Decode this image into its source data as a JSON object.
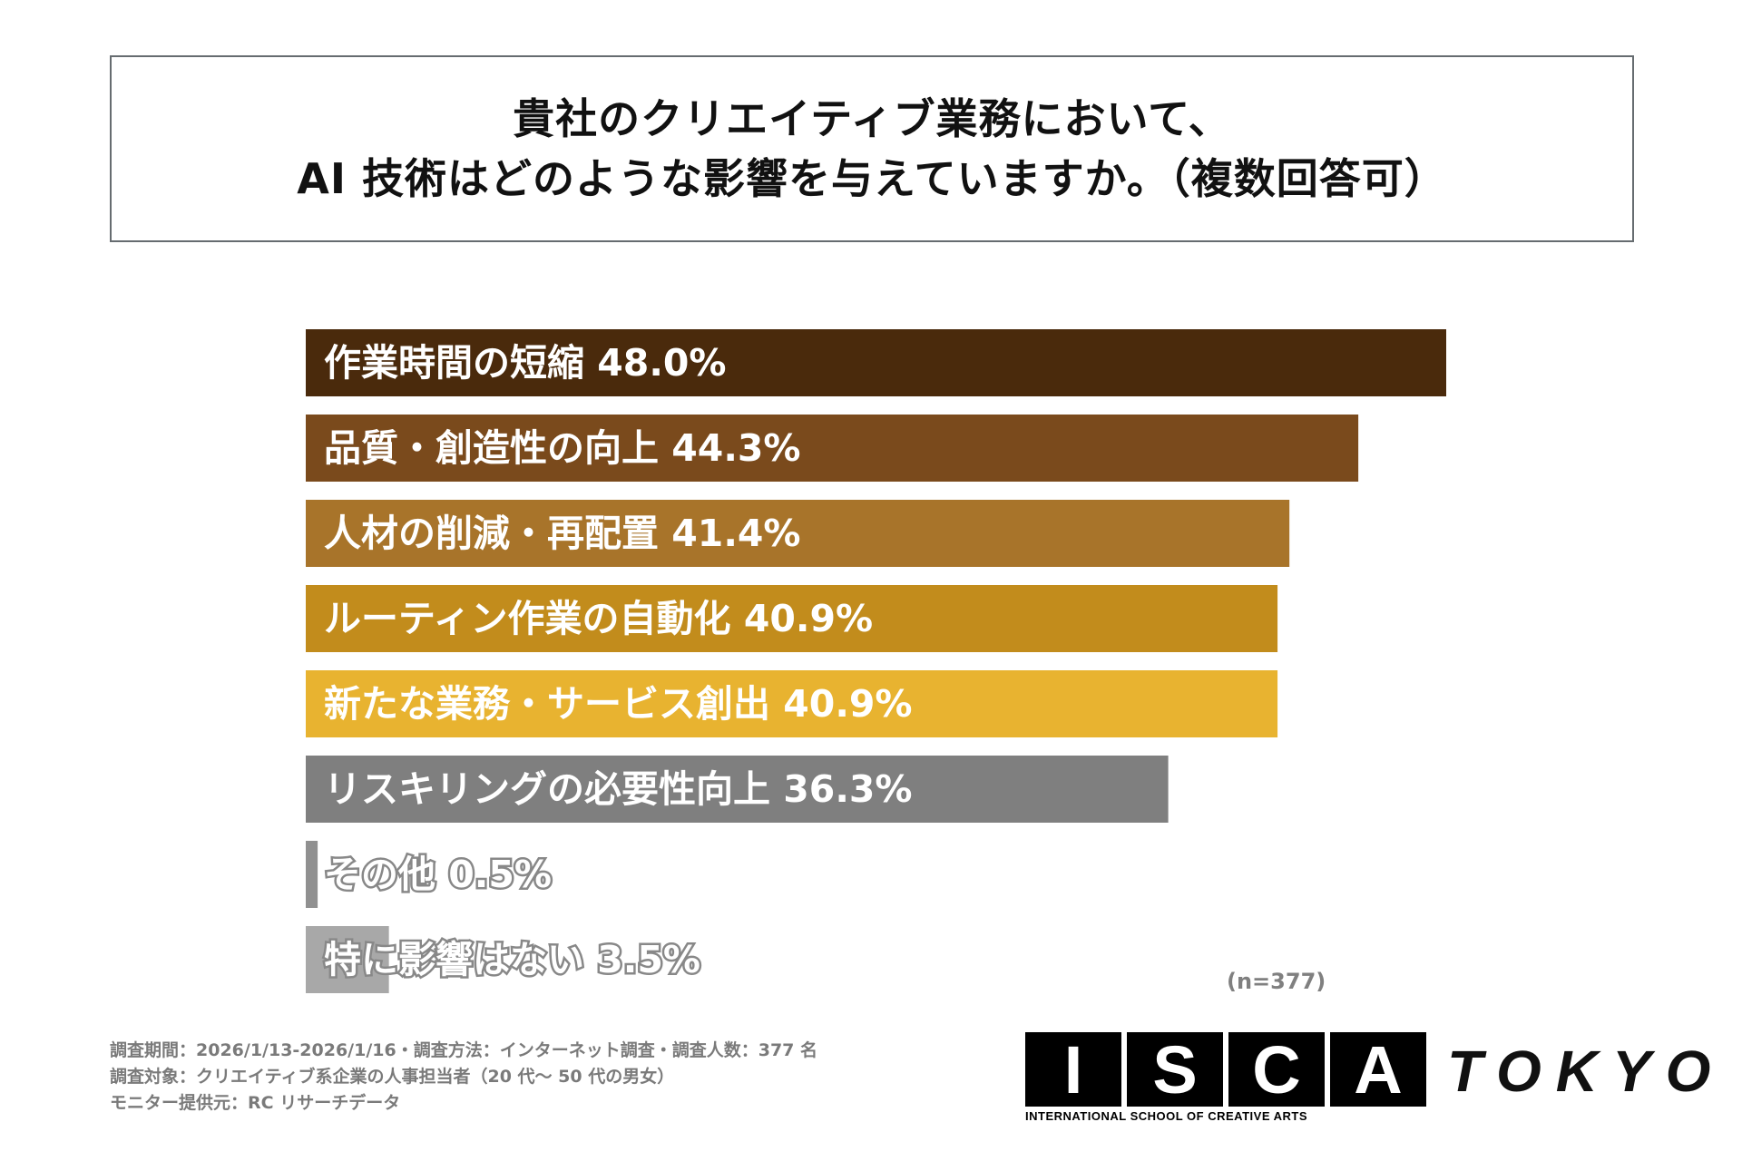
{
  "title": {
    "line1": "貴社のクリエイティブ業務において、",
    "line2": "AI 技術はどのような影響を与えていますか。（複数回答可）"
  },
  "chart_data": {
    "type": "bar",
    "orientation": "horizontal",
    "categories": [
      "作業時間の短縮",
      "品質・創造性の向上",
      "人材の削減・再配置",
      "ルーティン作業の自動化",
      "新たな業務・サービス創出",
      "リスキリングの必要性向上",
      "その他",
      "特に影響はない"
    ],
    "values": [
      48.0,
      44.3,
      41.4,
      40.9,
      40.9,
      36.3,
      0.5,
      3.5
    ],
    "labels": [
      "作業時間の短縮 48.0%",
      "品質・創造性の向上 44.3%",
      "人材の削減・再配置 41.4%",
      "ルーティン作業の自動化 40.9%",
      "新たな業務・サービス創出 40.9%",
      "リスキリングの必要性向上 36.3%",
      "その他 0.5%",
      "特に影響はない 3.5%"
    ],
    "colors": [
      "#4a2a0c",
      "#7a4a1c",
      "#a8742a",
      "#c28c1c",
      "#e8b330",
      "#7f7f7f",
      "#909090",
      "#a8a8a8"
    ],
    "unit": "%",
    "xlim": [
      0,
      48
    ]
  },
  "sample_note": "(n=377)",
  "footnotes": [
    "調査期間：2026/1/13-2026/1/16・調査方法：インターネット調査・調査人数：377 名",
    "調査対象：クリエイティブ系企業の人事担当者（20 代～ 50 代の男女）",
    "モニター提供元：RC リサーチデータ"
  ],
  "logo": {
    "letters": [
      "I",
      "S",
      "C",
      "A"
    ],
    "city": "TOKYO",
    "subtitle": "INTERNATIONAL SCHOOL OF CREATIVE ARTS"
  }
}
